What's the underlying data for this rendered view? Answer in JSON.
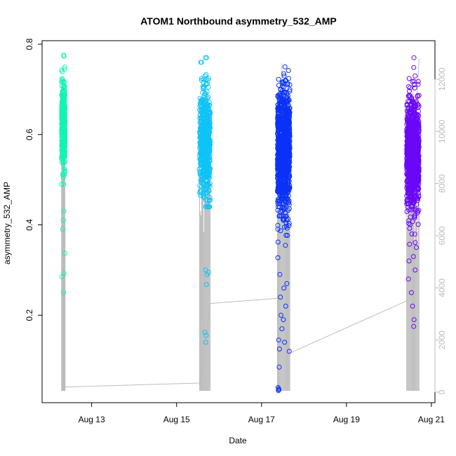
{
  "chart_data": {
    "type": "scatter",
    "title": "ATOM1 Northbound asymmetry_532_AMP",
    "xlabel": "Date",
    "ylabel": "asymmetry_532_AMP",
    "xlim": [
      "2015-08-11T20:00",
      "2015-08-21T02:00"
    ],
    "ylim": [
      0.0,
      0.8
    ],
    "x_ticks": [
      {
        "value": "2015-08-13T00:00",
        "label": "Aug 13"
      },
      {
        "value": "2015-08-15T00:00",
        "label": "Aug 15"
      },
      {
        "value": "2015-08-17T00:00",
        "label": "Aug 17"
      },
      {
        "value": "2015-08-19T00:00",
        "label": "Aug 19"
      },
      {
        "value": "2015-08-21T00:00",
        "label": "Aug 21"
      }
    ],
    "y_ticks": [
      0.2,
      0.4,
      0.6,
      0.8
    ],
    "y2_ticks": [
      0,
      2000,
      4000,
      6000,
      8000,
      10000,
      12000
    ],
    "y2_range": [
      0,
      13000
    ],
    "grid": false,
    "colors": {
      "cluster1": "#12f5b0",
      "cluster2": "#0fc3f5",
      "cluster3": "#0a32f7",
      "cluster4": "#6a08f6",
      "secondary_line": "#bdbdbd"
    },
    "series": [
      {
        "cluster": "cluster1",
        "x_range": [
          "2015-08-12T07:00",
          "2015-08-12T09:00"
        ],
        "y_center": 0.62,
        "y_spread": 0.045,
        "y_min": 0.49,
        "y_max": 0.755,
        "n": 380,
        "outliers": [
          {
            "x": "2015-08-12T07:10",
            "y": 0.285
          },
          {
            "x": "2015-08-12T08:10",
            "y": 0.25
          },
          {
            "x": "2015-08-12T08:20",
            "y": 0.292
          },
          {
            "x": "2015-08-12T08:50",
            "y": 0.337
          },
          {
            "x": "2015-08-12T07:40",
            "y": 0.39
          },
          {
            "x": "2015-08-12T08:00",
            "y": 0.41
          },
          {
            "x": "2015-08-12T08:20",
            "y": 0.43
          },
          {
            "x": "2015-08-12T08:10",
            "y": 0.776
          },
          {
            "x": "2015-08-12T08:20",
            "y": 0.773
          }
        ]
      },
      {
        "cluster": "cluster2",
        "x_range": [
          "2015-08-15T13:00",
          "2015-08-15T19:00"
        ],
        "y_center": 0.58,
        "y_spread": 0.06,
        "y_min": 0.44,
        "y_max": 0.76,
        "n": 600,
        "outliers": [
          {
            "x": "2015-08-15T16:30",
            "y": 0.14
          },
          {
            "x": "2015-08-15T16:40",
            "y": 0.155
          },
          {
            "x": "2015-08-15T16:00",
            "y": 0.162
          },
          {
            "x": "2015-08-15T16:50",
            "y": 0.268
          },
          {
            "x": "2015-08-15T17:10",
            "y": 0.29
          },
          {
            "x": "2015-08-15T16:20",
            "y": 0.3
          },
          {
            "x": "2015-08-15T18:00",
            "y": 0.295
          },
          {
            "x": "2015-08-15T16:20",
            "y": 0.77
          },
          {
            "x": "2015-08-15T17:00",
            "y": 0.77
          }
        ]
      },
      {
        "cluster": "cluster3",
        "x_range": [
          "2015-08-17T09:00",
          "2015-08-17T16:00"
        ],
        "y_center": 0.56,
        "y_spread": 0.07,
        "y_min": 0.3,
        "y_max": 0.75,
        "n": 1000,
        "outliers": [
          {
            "x": "2015-08-17T09:30",
            "y": 0.033
          },
          {
            "x": "2015-08-17T09:40",
            "y": 0.037
          },
          {
            "x": "2015-08-17T09:20",
            "y": 0.04
          },
          {
            "x": "2015-08-17T09:50",
            "y": 0.035
          },
          {
            "x": "2015-08-17T10:00",
            "y": 0.085
          },
          {
            "x": "2015-08-17T10:10",
            "y": 0.125
          },
          {
            "x": "2015-08-17T09:40",
            "y": 0.145
          },
          {
            "x": "2015-08-17T13:00",
            "y": 0.14
          },
          {
            "x": "2015-08-17T15:40",
            "y": 0.12
          },
          {
            "x": "2015-08-17T11:30",
            "y": 0.17
          },
          {
            "x": "2015-08-17T12:20",
            "y": 0.19
          },
          {
            "x": "2015-08-17T11:00",
            "y": 0.2
          },
          {
            "x": "2015-08-17T13:40",
            "y": 0.22
          },
          {
            "x": "2015-08-17T10:40",
            "y": 0.24
          },
          {
            "x": "2015-08-17T12:40",
            "y": 0.26
          },
          {
            "x": "2015-08-17T14:20",
            "y": 0.27
          },
          {
            "x": "2015-08-17T10:20",
            "y": 0.29
          }
        ]
      },
      {
        "cluster": "cluster4",
        "x_range": [
          "2015-08-20T10:00",
          "2015-08-20T17:00"
        ],
        "y_center": 0.56,
        "y_spread": 0.06,
        "y_min": 0.35,
        "y_max": 0.77,
        "n": 1000,
        "outliers": [
          {
            "x": "2015-08-20T14:00",
            "y": 0.175
          },
          {
            "x": "2015-08-20T14:10",
            "y": 0.19
          },
          {
            "x": "2015-08-20T13:20",
            "y": 0.22
          },
          {
            "x": "2015-08-20T12:40",
            "y": 0.25
          },
          {
            "x": "2015-08-20T11:00",
            "y": 0.28
          },
          {
            "x": "2015-08-20T14:50",
            "y": 0.3
          },
          {
            "x": "2015-08-20T13:50",
            "y": 0.33
          },
          {
            "x": "2015-08-20T11:20",
            "y": 0.32
          },
          {
            "x": "2015-08-20T15:30",
            "y": 0.35
          }
        ]
      }
    ],
    "secondary_series": {
      "axis": "right",
      "points": [
        {
          "x": "2015-08-12T07:00",
          "y": 200
        },
        {
          "x": "2015-08-12T09:00",
          "y": 200
        },
        {
          "x": "2015-08-15T13:00",
          "y": 350
        },
        {
          "x": "2015-08-15T19:00",
          "y": 3400
        },
        {
          "x": "2015-08-17T09:00",
          "y": 3600
        },
        {
          "x": "2015-08-17T16:00",
          "y": 1500
        },
        {
          "x": "2015-08-20T10:00",
          "y": 3500
        },
        {
          "x": "2015-08-20T17:00",
          "y": 12800
        }
      ],
      "spikes": [
        {
          "x_range": [
            "2015-08-12T07:00",
            "2015-08-12T09:00"
          ],
          "y_top": 12000,
          "y_bottom": 50,
          "n": 14
        },
        {
          "x_range": [
            "2015-08-15T13:00",
            "2015-08-15T19:00"
          ],
          "y_top": 12000,
          "y_bottom": 50,
          "n": 16
        },
        {
          "x_range": [
            "2015-08-17T09:00",
            "2015-08-17T16:00"
          ],
          "y_top": 12800,
          "y_bottom": 50,
          "n": 18
        },
        {
          "x_range": [
            "2015-08-20T10:00",
            "2015-08-20T17:00"
          ],
          "y_top": 12500,
          "y_bottom": 50,
          "n": 18
        }
      ]
    }
  }
}
